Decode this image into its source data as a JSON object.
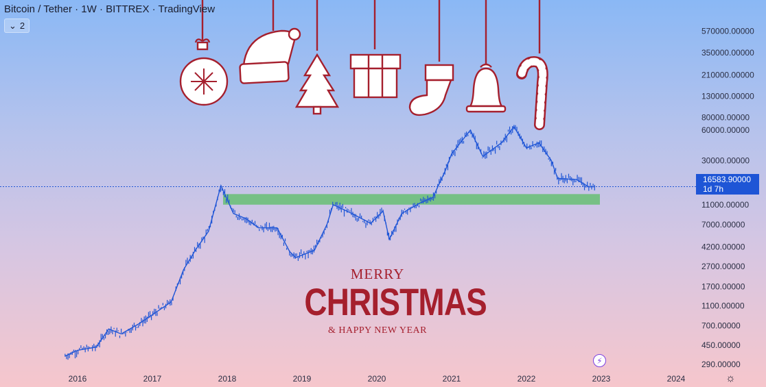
{
  "header": {
    "title": "Bitcoin / Tether · 1W · BITTREX · TradingView",
    "interval_count": "2"
  },
  "price_label": {
    "price": "16583.90000",
    "countdown": "1d 7h"
  },
  "greeting": {
    "merry": "MERRY",
    "christmas": "CHRISTMAS",
    "new_year": "& HAPPY NEW YEAR"
  },
  "icons": {
    "interval": "chevron-down-icon",
    "replay": "lightning-icon",
    "settings": "gear-icon"
  },
  "colors": {
    "candle": "#1e55d6",
    "zone": "#6dbf7a",
    "ornament": "#a51f2d",
    "price_box": "#1e55d6"
  },
  "chart_data": {
    "type": "line",
    "scale": "log",
    "x_ticks": [
      "2016",
      "2017",
      "2018",
      "2019",
      "2020",
      "2021",
      "2022",
      "2023",
      "2024"
    ],
    "y_ticks": [
      "290.00000",
      "450.00000",
      "700.00000",
      "1100.00000",
      "1700.00000",
      "2700.00000",
      "4200.00000",
      "7000.00000",
      "11000.00000",
      "30000.00000",
      "60000.00000",
      "80000.00000",
      "130000.00000",
      "210000.00000",
      "350000.00000",
      "570000.00000"
    ],
    "current_price": 16583.9,
    "support_zone": [
      11000,
      14000
    ],
    "series": [
      {
        "values": [
          [
            "2015-11",
            350
          ],
          [
            "2016-01",
            400
          ],
          [
            "2016-04",
            430
          ],
          [
            "2016-06",
            650
          ],
          [
            "2016-08",
            580
          ],
          [
            "2016-11",
            740
          ],
          [
            "2017-01",
            900
          ],
          [
            "2017-04",
            1200
          ],
          [
            "2017-06",
            2500
          ],
          [
            "2017-08",
            4000
          ],
          [
            "2017-10",
            6000
          ],
          [
            "2017-12",
            17000
          ],
          [
            "2018-02",
            9000
          ],
          [
            "2018-04",
            8000
          ],
          [
            "2018-06",
            6500
          ],
          [
            "2018-09",
            6500
          ],
          [
            "2018-11",
            3800
          ],
          [
            "2018-12",
            3300
          ],
          [
            "2019-03",
            3900
          ],
          [
            "2019-05",
            7000
          ],
          [
            "2019-06",
            11000
          ],
          [
            "2019-09",
            9000
          ],
          [
            "2019-12",
            7200
          ],
          [
            "2020-02",
            9500
          ],
          [
            "2020-03",
            5000
          ],
          [
            "2020-05",
            9000
          ],
          [
            "2020-08",
            11500
          ],
          [
            "2020-10",
            13000
          ],
          [
            "2020-12",
            24000
          ],
          [
            "2021-01",
            35000
          ],
          [
            "2021-04",
            60000
          ],
          [
            "2021-06",
            33000
          ],
          [
            "2021-09",
            45000
          ],
          [
            "2021-11",
            65000
          ],
          [
            "2022-01",
            40000
          ],
          [
            "2022-03",
            45000
          ],
          [
            "2022-05",
            30000
          ],
          [
            "2022-06",
            20000
          ],
          [
            "2022-09",
            19500
          ],
          [
            "2022-11",
            16500
          ],
          [
            "2022-12",
            16583.9
          ]
        ]
      }
    ]
  }
}
